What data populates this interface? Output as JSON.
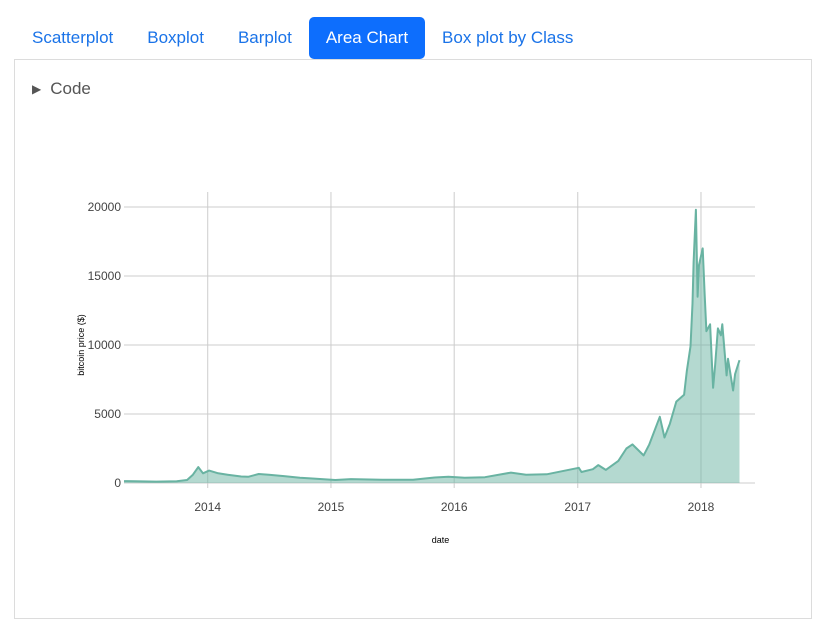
{
  "tabs": [
    {
      "label": "Scatterplot",
      "active": false
    },
    {
      "label": "Boxplot",
      "active": false
    },
    {
      "label": "Barplot",
      "active": false
    },
    {
      "label": "Area Chart",
      "active": true
    },
    {
      "label": "Box plot by Class",
      "active": false
    }
  ],
  "code_toggle": {
    "icon": "triangle-right-icon",
    "label": "Code"
  },
  "colors": {
    "active_tab": "#0d6efd",
    "tab_text": "#1a73e8",
    "area_fill": "#69b3a2",
    "area_line": "#69b3a2",
    "grid": "#cccccc"
  },
  "chart_data": {
    "type": "area",
    "xlabel": "date",
    "ylabel": "bitcoin price ($)",
    "xlim": [
      "2013-04-28",
      "2018-06-10"
    ],
    "ylim": [
      0,
      21000
    ],
    "grid": true,
    "x_ticks": [
      "2014",
      "2015",
      "2016",
      "2017",
      "2018"
    ],
    "y_ticks": [
      0,
      5000,
      10000,
      15000,
      20000
    ],
    "series": [
      {
        "x": [
          "2013-04-28",
          "2013-06-01",
          "2013-08-01",
          "2013-10-01",
          "2013-11-01",
          "2013-11-18",
          "2013-12-04",
          "2013-12-18",
          "2014-01-05",
          "2014-02-01",
          "2014-03-01",
          "2014-04-10",
          "2014-05-01",
          "2014-06-01",
          "2014-07-01",
          "2014-08-15",
          "2014-10-01",
          "2014-11-01",
          "2015-01-14",
          "2015-03-01",
          "2015-06-01",
          "2015-09-01",
          "2015-11-04",
          "2015-12-15",
          "2016-02-01",
          "2016-04-01",
          "2016-06-17",
          "2016-08-01",
          "2016-10-01",
          "2017-01-04",
          "2017-01-12",
          "2017-02-15",
          "2017-03-03",
          "2017-03-25",
          "2017-05-01",
          "2017-05-25",
          "2017-06-12",
          "2017-07-15",
          "2017-08-01",
          "2017-09-01",
          "2017-09-15",
          "2017-10-01",
          "2017-10-20",
          "2017-11-12",
          "2017-11-20",
          "2017-12-01",
          "2017-12-07",
          "2017-12-10",
          "2017-12-17",
          "2017-12-22",
          "2017-12-26",
          "2018-01-06",
          "2018-01-12",
          "2018-01-17",
          "2018-01-28",
          "2018-02-06",
          "2018-02-12",
          "2018-02-20",
          "2018-03-01",
          "2018-03-05",
          "2018-03-18",
          "2018-03-22",
          "2018-04-06",
          "2018-04-12",
          "2018-04-25"
        ],
        "y": [
          135,
          120,
          100,
          130,
          220,
          600,
          1150,
          700,
          900,
          700,
          600,
          470,
          450,
          650,
          600,
          500,
          380,
          330,
          220,
          280,
          240,
          230,
          400,
          450,
          380,
          420,
          750,
          600,
          630,
          1100,
          800,
          1000,
          1300,
          950,
          1600,
          2500,
          2800,
          2000,
          2800,
          4800,
          3300,
          4300,
          5900,
          6400,
          8100,
          9900,
          13000,
          16000,
          19800,
          13500,
          15800,
          17000,
          13600,
          11000,
          11500,
          6900,
          8600,
          11200,
          10700,
          11500,
          7800,
          9000,
          6700,
          7900,
          8900
        ]
      }
    ]
  }
}
